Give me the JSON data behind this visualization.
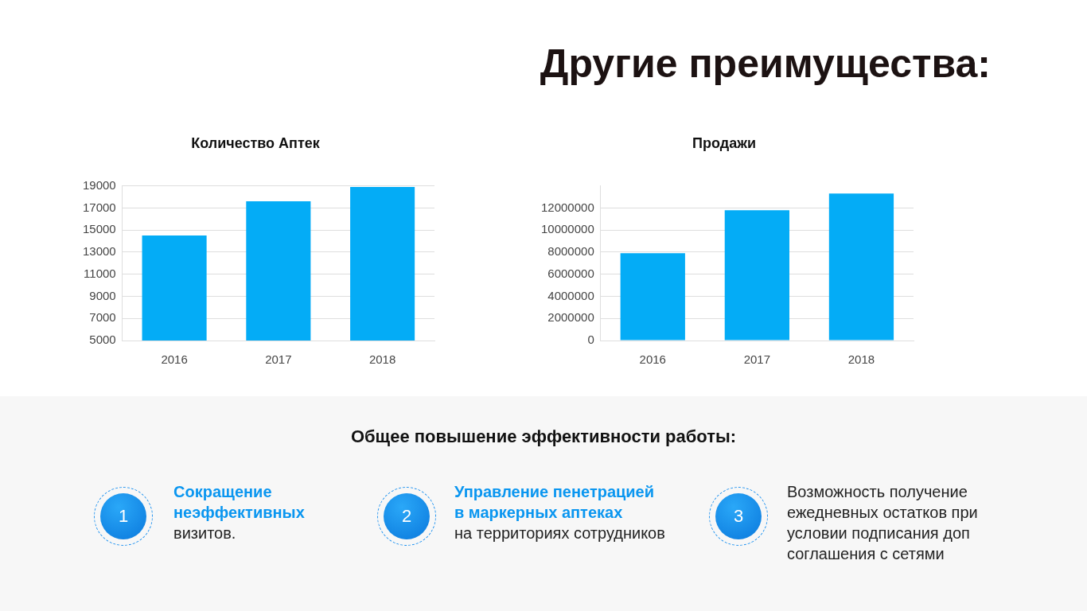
{
  "chart_data": [
    {
      "type": "other",
      "title": "Другие преимущества:"
    },
    {
      "type": "bar",
      "title": "Количество Аптек",
      "categories": [
        "2016",
        "2017",
        "2018"
      ],
      "values": [
        14500,
        17600,
        18900
      ],
      "color": "#04acf6",
      "ylim": [
        5000,
        19000
      ],
      "yticks": [
        5000,
        7000,
        9000,
        11000,
        13000,
        15000,
        17000,
        19000
      ],
      "grid": "y"
    },
    {
      "type": "bar",
      "title": "Продажи",
      "categories": [
        "2016",
        "2017",
        "2018"
      ],
      "values": [
        7900000,
        11800000,
        13300000
      ],
      "color": "#04acf6",
      "ylim": [
        0,
        14000000
      ],
      "yticks": [
        0,
        2000000,
        4000000,
        6000000,
        8000000,
        10000000,
        12000000
      ],
      "grid": "y"
    },
    {
      "type": "other",
      "title": "Общее повышение эффективности работы:",
      "categories": [
        "1",
        "2",
        "3"
      ],
      "annotations": [
        "Сокращение неэффективных",
        "визитов.",
        "Управление пенетрацией в маркерных аптеках",
        "на территориях сотрудников",
        "Возможность получение ежедневных остатков при условии подписания доп соглашения с сетями"
      ]
    }
  ]
}
